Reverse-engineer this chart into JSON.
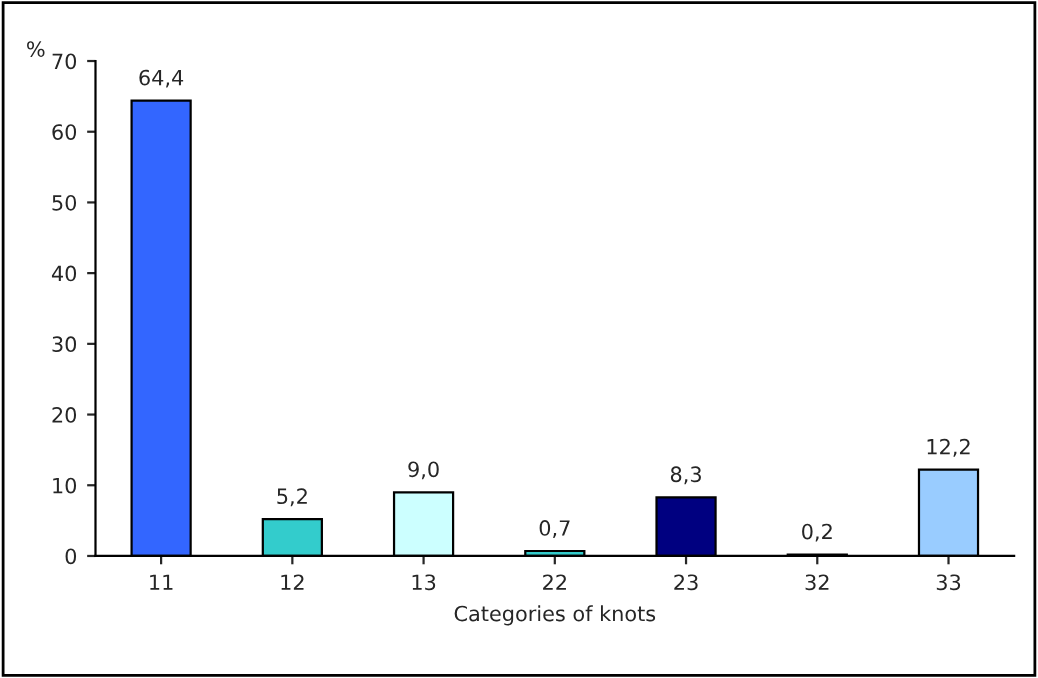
{
  "chart_data": {
    "type": "bar",
    "xlabel": "Categories of knots",
    "ylabel": "%",
    "categories": [
      "11",
      "12",
      "13",
      "22",
      "23",
      "32",
      "33"
    ],
    "values": [
      64.4,
      5.2,
      9.0,
      0.7,
      8.3,
      0.2,
      12.2
    ],
    "colors": [
      "#3366ff",
      "#33cccc",
      "#ccffff",
      "#33cccc",
      "#000080",
      "#333399",
      "#99ccff"
    ],
    "value_labels": [
      "64,4",
      "5,2",
      "9,0",
      "0,7",
      "8,3",
      "0,2",
      "12,2"
    ],
    "ylim": [
      0,
      70
    ],
    "yticks": [
      0,
      10,
      20,
      30,
      40,
      50,
      60,
      70
    ],
    "grid": false,
    "legend": false
  }
}
